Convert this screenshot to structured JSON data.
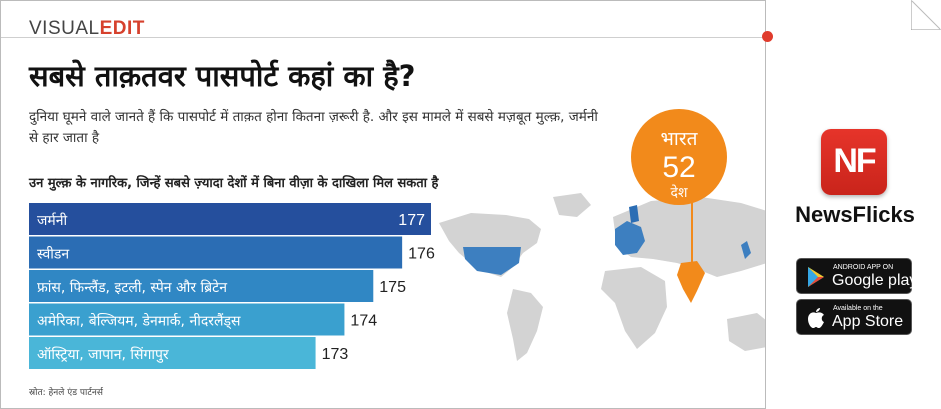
{
  "header": {
    "brand_part1": "VISUAL",
    "brand_part2": "EDIT",
    "title": "सबसे ताक़तवर पासपोर्ट कहां का है?",
    "description": "दुनिया घूमने वाले जानते हैं कि पासपोर्ट में ताक़त होना कितना ज़रूरी है. और इस मामले में सबसे मज़बूत मुल्क़, जर्मनी से हार जाता है",
    "subtitle": "उन मुल्क़ के नागरिक, जिन्हें सबसे ज़्यादा देशों में बिना वीज़ा के दाखिला मिल सकता है",
    "source": "स्रोत: हेनले एंड पार्टनर्स"
  },
  "callout": {
    "country": "भारत",
    "value": "52",
    "unit": "देश"
  },
  "colors": {
    "brand_accent": "#d6412d",
    "callout_orange": "#f28a1b",
    "bar_shades": [
      "#254f9d",
      "#2b6db4",
      "#3087c4",
      "#3aa0cf",
      "#4ab6d8"
    ],
    "map_blue": "#3d7fc0",
    "map_india": "#f28a1b",
    "map_land": "#d3d3d3"
  },
  "chart_data": {
    "type": "bar",
    "orientation": "horizontal",
    "categories": [
      "जर्मनी",
      "स्वीडन",
      "फ्रांस, फिन्लैंड, इटली, स्पेन और ब्रिटेन",
      "अमेरिका, बेल्जियम, डेनमार्क, नीदरलैंड्स",
      "ऑस्ट्रिया, जापान, सिंगापुर"
    ],
    "values": [
      177,
      176,
      175,
      174,
      173
    ]
  },
  "side_panel": {
    "logo_text": "NF",
    "app_name": "NewsFlicks",
    "google_play_small": "ANDROID APP ON",
    "google_play_big": "Google play",
    "app_store_small": "Available on the",
    "app_store_big": "App Store",
    "icons": [
      "page-fold-icon",
      "play-icon",
      "apple-icon"
    ]
  }
}
